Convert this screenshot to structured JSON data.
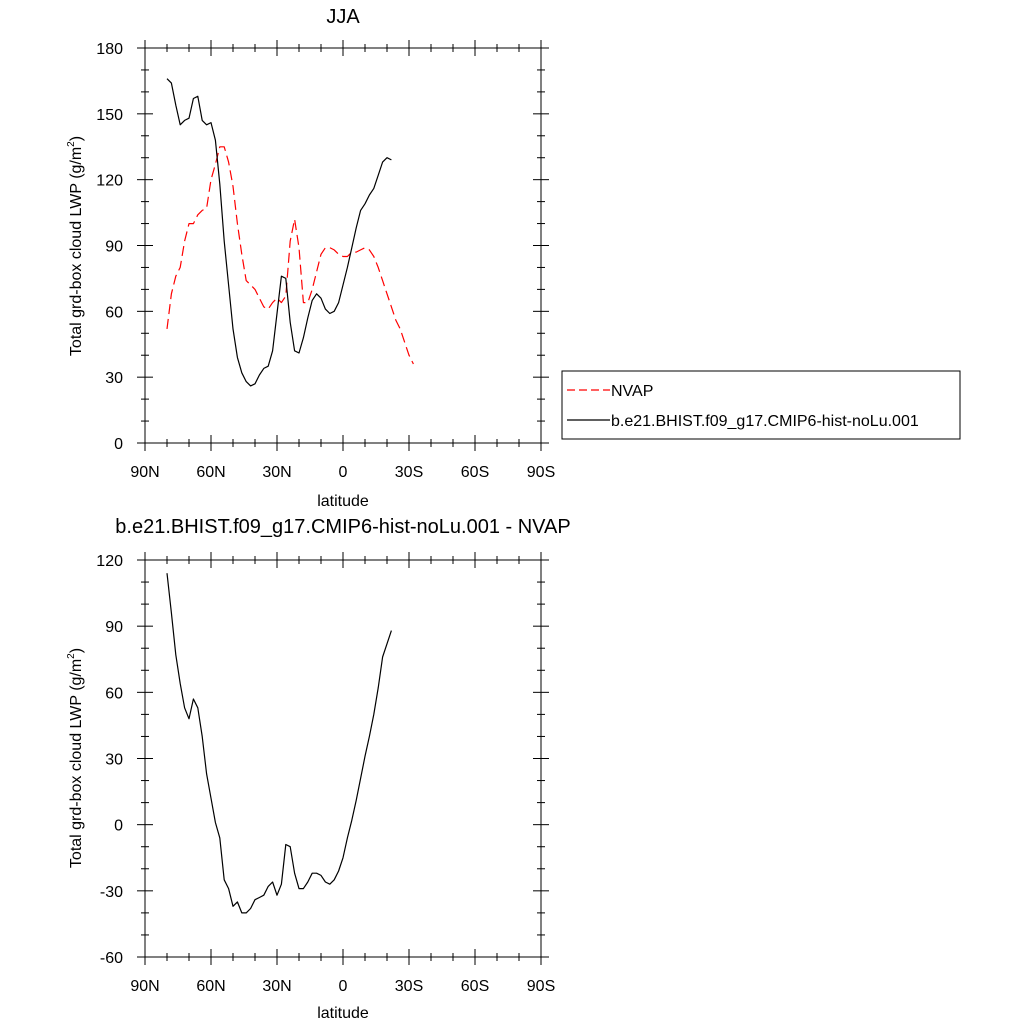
{
  "chart_data": [
    {
      "type": "line",
      "title": "JJA",
      "xlabel": "latitude",
      "ylabel_main": "Total grd-box cloud LWP (g/m",
      "ylabel_sup": "2",
      "ylabel_end": ")",
      "xlim": [
        90,
        -90
      ],
      "ylim": [
        0,
        180
      ],
      "x_ticks": [
        90,
        60,
        30,
        0,
        -30,
        -60,
        -90
      ],
      "x_tick_labels": [
        "90N",
        "60N",
        "30N",
        "0",
        "30S",
        "60S",
        "90S"
      ],
      "y_ticks": [
        0,
        30,
        60,
        90,
        120,
        150,
        180
      ],
      "y_tick_labels": [
        "0",
        "30",
        "60",
        "90",
        "120",
        "150",
        "180"
      ],
      "legend_position": "right",
      "series": [
        {
          "name": "NVAP",
          "color": "#ff0000",
          "dash": "dashed",
          "points": [
            [
              80,
              52
            ],
            [
              78,
              68
            ],
            [
              76,
              76
            ],
            [
              74,
              80
            ],
            [
              72,
              92
            ],
            [
              70,
              100
            ],
            [
              68,
              100
            ],
            [
              66,
              104
            ],
            [
              64,
              106
            ],
            [
              62,
              107
            ],
            [
              60,
              120
            ],
            [
              58,
              127
            ],
            [
              56,
              135
            ],
            [
              54,
              135
            ],
            [
              52,
              128
            ],
            [
              50,
              117
            ],
            [
              48,
              100
            ],
            [
              46,
              86
            ],
            [
              44,
              74
            ],
            [
              42,
              72
            ],
            [
              40,
              70
            ],
            [
              38,
              66
            ],
            [
              36,
              62
            ],
            [
              34,
              61
            ],
            [
              32,
              64
            ],
            [
              30,
              66
            ],
            [
              28,
              64
            ],
            [
              26,
              67
            ],
            [
              24,
              92
            ],
            [
              22,
              102
            ],
            [
              20,
              89
            ],
            [
              18,
              64
            ],
            [
              16,
              64
            ],
            [
              14,
              70
            ],
            [
              12,
              78
            ],
            [
              10,
              86
            ],
            [
              8,
              89
            ],
            [
              6,
              89
            ],
            [
              4,
              88
            ],
            [
              2,
              86
            ],
            [
              0,
              85
            ],
            [
              -2,
              85
            ],
            [
              -4,
              87
            ],
            [
              -6,
              87
            ],
            [
              -8,
              88
            ],
            [
              -10,
              89
            ],
            [
              -12,
              88
            ],
            [
              -14,
              85
            ],
            [
              -16,
              80
            ],
            [
              -18,
              74
            ],
            [
              -20,
              68
            ],
            [
              -22,
              62
            ],
            [
              -24,
              56
            ],
            [
              -26,
              52
            ],
            [
              -28,
              46
            ],
            [
              -30,
              40
            ],
            [
              -32,
              36
            ]
          ]
        },
        {
          "name": "b.e21.BHIST.f09_g17.CMIP6-hist-noLu.001",
          "color": "#000000",
          "dash": "solid",
          "points": [
            [
              80,
              166
            ],
            [
              78,
              164
            ],
            [
              76,
              154
            ],
            [
              74,
              145
            ],
            [
              72,
              147
            ],
            [
              70,
              148
            ],
            [
              68,
              157
            ],
            [
              66,
              158
            ],
            [
              64,
              147
            ],
            [
              62,
              145
            ],
            [
              60,
              146
            ],
            [
              58,
              138
            ],
            [
              56,
              118
            ],
            [
              54,
              92
            ],
            [
              52,
              72
            ],
            [
              50,
              52
            ],
            [
              48,
              39
            ],
            [
              46,
              32
            ],
            [
              44,
              28
            ],
            [
              42,
              26
            ],
            [
              40,
              27
            ],
            [
              38,
              31
            ],
            [
              36,
              34
            ],
            [
              34,
              35
            ],
            [
              32,
              42
            ],
            [
              30,
              59
            ],
            [
              28,
              76
            ],
            [
              26,
              75
            ],
            [
              24,
              55
            ],
            [
              22,
              42
            ],
            [
              20,
              41
            ],
            [
              18,
              48
            ],
            [
              16,
              57
            ],
            [
              14,
              65
            ],
            [
              12,
              68
            ],
            [
              10,
              66
            ],
            [
              8,
              61
            ],
            [
              6,
              59
            ],
            [
              4,
              60
            ],
            [
              2,
              64
            ],
            [
              0,
              72
            ],
            [
              -2,
              80
            ],
            [
              -4,
              89
            ],
            [
              -6,
              98
            ],
            [
              -8,
              106
            ],
            [
              -10,
              109
            ],
            [
              -12,
              113
            ],
            [
              -14,
              116
            ],
            [
              -16,
              122
            ],
            [
              -18,
              128
            ],
            [
              -20,
              130
            ],
            [
              -22,
              129
            ]
          ]
        }
      ]
    },
    {
      "type": "line",
      "title": "b.e21.BHIST.f09_g17.CMIP6-hist-noLu.001 - NVAP",
      "xlabel": "latitude",
      "ylabel_main": "Total grd-box cloud LWP (g/m",
      "ylabel_sup": "2",
      "ylabel_end": ")",
      "xlim": [
        90,
        -90
      ],
      "ylim": [
        -60,
        120
      ],
      "x_ticks": [
        90,
        60,
        30,
        0,
        -30,
        -60,
        -90
      ],
      "x_tick_labels": [
        "90N",
        "60N",
        "30N",
        "0",
        "30S",
        "60S",
        "90S"
      ],
      "y_ticks": [
        -60,
        -30,
        0,
        30,
        60,
        90,
        120
      ],
      "y_tick_labels": [
        "-60",
        "-30",
        "0",
        "30",
        "60",
        "90",
        "120"
      ],
      "series": [
        {
          "color": "#000000",
          "dash": "solid",
          "points": [
            [
              80,
              114
            ],
            [
              78,
              96
            ],
            [
              76,
              77
            ],
            [
              74,
              64
            ],
            [
              72,
              53
            ],
            [
              70,
              48
            ],
            [
              68,
              57
            ],
            [
              66,
              53
            ],
            [
              64,
              40
            ],
            [
              62,
              23
            ],
            [
              60,
              12
            ],
            [
              58,
              1
            ],
            [
              56,
              -6
            ],
            [
              54,
              -25
            ],
            [
              52,
              -29
            ],
            [
              50,
              -37
            ],
            [
              48,
              -35
            ],
            [
              46,
              -40
            ],
            [
              44,
              -40
            ],
            [
              42,
              -38
            ],
            [
              40,
              -34
            ],
            [
              38,
              -33
            ],
            [
              36,
              -32
            ],
            [
              34,
              -28
            ],
            [
              32,
              -26
            ],
            [
              30,
              -32
            ],
            [
              28,
              -27
            ],
            [
              26,
              -9
            ],
            [
              24,
              -10
            ],
            [
              22,
              -22
            ],
            [
              20,
              -29
            ],
            [
              18,
              -29
            ],
            [
              16,
              -26
            ],
            [
              14,
              -22
            ],
            [
              12,
              -22
            ],
            [
              10,
              -23
            ],
            [
              8,
              -26
            ],
            [
              6,
              -27
            ],
            [
              4,
              -25
            ],
            [
              2,
              -21
            ],
            [
              0,
              -15
            ],
            [
              -2,
              -6
            ],
            [
              -4,
              2
            ],
            [
              -6,
              11
            ],
            [
              -8,
              21
            ],
            [
              -10,
              31
            ],
            [
              -12,
              40
            ],
            [
              -14,
              50
            ],
            [
              -16,
              62
            ],
            [
              -18,
              76
            ],
            [
              -20,
              82
            ],
            [
              -22,
              88
            ]
          ]
        }
      ]
    }
  ]
}
